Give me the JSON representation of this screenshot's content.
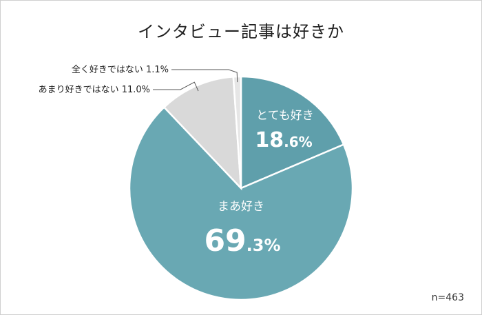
{
  "chart_data": {
    "type": "pie",
    "title": "インタビュー記事は好きか",
    "slices": [
      {
        "label": "とても好き",
        "value": 18.6,
        "int_part": "18",
        "dec_part": ".6%",
        "color": "#5f9fab"
      },
      {
        "label": "まあ好き",
        "value": 69.3,
        "int_part": "69",
        "dec_part": ".3%",
        "color": "#69a8b3"
      },
      {
        "label": "あまり好きではない",
        "value": 11.0,
        "display": "11.0%",
        "color": "#d9d9d9"
      },
      {
        "label": "全く好きではない",
        "value": 1.1,
        "display": "1.1%",
        "color": "#e6e6e6"
      }
    ],
    "note": "n=463"
  }
}
